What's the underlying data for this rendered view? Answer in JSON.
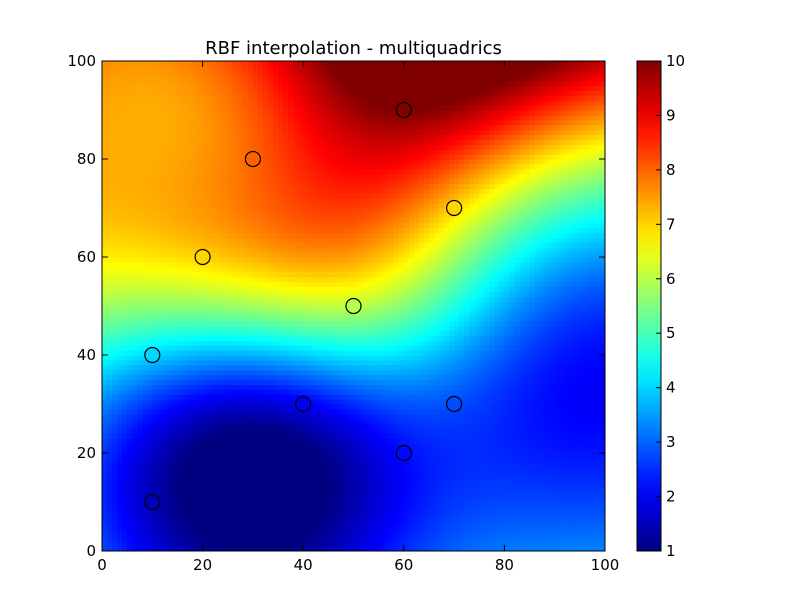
{
  "chart_data": {
    "type": "heatmap",
    "title": "RBF interpolation - multiquadrics",
    "xlabel": "",
    "ylabel": "",
    "xlim": [
      0,
      100
    ],
    "ylim": [
      0,
      100
    ],
    "x_ticks": [
      "0",
      "20",
      "40",
      "60",
      "80",
      "100"
    ],
    "y_ticks": [
      "0",
      "20",
      "40",
      "60",
      "80",
      "100"
    ],
    "colormap": "jet",
    "colorbar": {
      "range": [
        1,
        10
      ],
      "ticks": [
        "1",
        "2",
        "3",
        "4",
        "5",
        "6",
        "7",
        "8",
        "9",
        "10"
      ]
    },
    "points": [
      {
        "x": 10,
        "y": 10,
        "value": 1.5
      },
      {
        "x": 40,
        "y": 30,
        "value": 2.0
      },
      {
        "x": 60,
        "y": 20,
        "value": 2.2
      },
      {
        "x": 70,
        "y": 30,
        "value": 2.8
      },
      {
        "x": 10,
        "y": 40,
        "value": 4.0
      },
      {
        "x": 50,
        "y": 50,
        "value": 6.0
      },
      {
        "x": 20,
        "y": 60,
        "value": 7.0
      },
      {
        "x": 70,
        "y": 70,
        "value": 7.0
      },
      {
        "x": 30,
        "y": 80,
        "value": 8.0
      },
      {
        "x": 60,
        "y": 90,
        "value": 10.0
      }
    ],
    "grid": false
  }
}
